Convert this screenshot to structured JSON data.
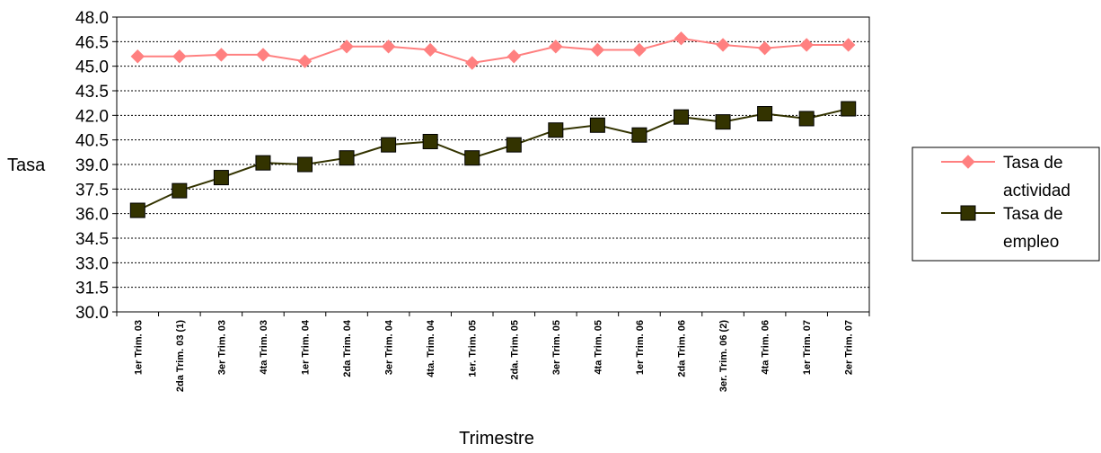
{
  "chart_data": {
    "type": "line",
    "title": "",
    "xlabel": "Trimestre",
    "ylabel": "Tasa",
    "ylim": [
      30.0,
      48.0
    ],
    "ytick_step": 1.5,
    "grid": true,
    "legend_position": "right",
    "categories": [
      "1er Trim. 03",
      "2da Trim. 03 (1)",
      "3er Trim. 03",
      "4ta Trim. 03",
      "1er Trim. 04",
      "2da Trim. 04",
      "3er Trim. 04",
      "4ta. Trim. 04",
      "1er. Trim. 05",
      "2da. Trim. 05",
      "3er Trim. 05",
      "4ta Trim. 05",
      "1er Trim. 06",
      "2da Trim. 06",
      "3er. Trim. 06 (2)",
      "4ta Trim. 06",
      "1er Trim. 07",
      "2er Trim. 07"
    ],
    "series": [
      {
        "name_lines": [
          "Tasa de",
          "actividad"
        ],
        "color": "#FF8080",
        "marker": "diamond",
        "values": [
          45.6,
          45.6,
          45.7,
          45.7,
          45.3,
          46.2,
          46.2,
          46.0,
          45.2,
          45.6,
          46.2,
          46.0,
          46.0,
          46.7,
          46.3,
          46.1,
          46.3,
          46.3
        ]
      },
      {
        "name_lines": [
          "Tasa de",
          "empleo"
        ],
        "color": "#333300",
        "marker": "square",
        "values": [
          36.2,
          37.4,
          38.2,
          39.1,
          39.0,
          39.4,
          40.2,
          40.4,
          39.4,
          40.2,
          41.1,
          41.4,
          40.8,
          41.9,
          41.6,
          42.1,
          41.8,
          42.4
        ]
      }
    ]
  }
}
